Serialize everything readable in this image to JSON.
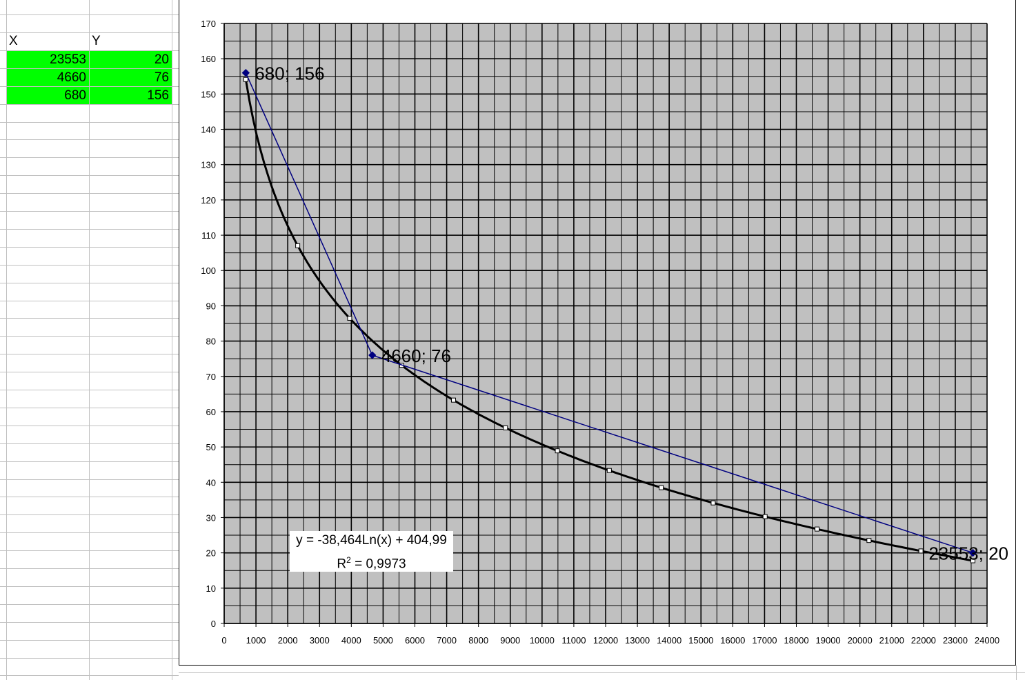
{
  "sheet": {
    "headers": {
      "x": "X",
      "y": "Y"
    },
    "rows": [
      {
        "x": "23553",
        "y": "20"
      },
      {
        "x": "4660",
        "y": "76"
      },
      {
        "x": "680",
        "y": "156"
      }
    ],
    "fill_color": "#00ff00"
  },
  "chart_data": {
    "type": "line",
    "xlim": [
      0,
      24000
    ],
    "ylim": [
      0,
      170
    ],
    "x_ticks": [
      "0",
      "1000",
      "2000",
      "3000",
      "4000",
      "5000",
      "6000",
      "7000",
      "8000",
      "9000",
      "10000",
      "11000",
      "12000",
      "13000",
      "14000",
      "15000",
      "16000",
      "17000",
      "18000",
      "19000",
      "20000",
      "21000",
      "22000",
      "23000",
      "24000"
    ],
    "y_ticks": [
      "0",
      "10",
      "20",
      "30",
      "40",
      "50",
      "60",
      "70",
      "80",
      "90",
      "100",
      "110",
      "120",
      "130",
      "140",
      "150",
      "160",
      "170"
    ],
    "grid": true,
    "plot_background": "#c0c0c0",
    "series": [
      {
        "kind": "data",
        "color": "#000080",
        "marker": "diamond",
        "points": [
          {
            "x": 680,
            "y": 156,
            "label": "680; 156"
          },
          {
            "x": 4660,
            "y": 76,
            "label": "4660; 76"
          },
          {
            "x": 23553,
            "y": 20,
            "label": "23553; 20"
          }
        ]
      },
      {
        "kind": "trendline",
        "color": "#000000",
        "model": "log",
        "a": -38.464,
        "b": 404.99,
        "x_range": [
          680,
          23553
        ]
      }
    ],
    "trendline_label": {
      "equation": "y = -38,464Ln(x) + 404,99",
      "r2_prefix": "R",
      "r2_sup": "2",
      "r2_value": " = 0,9973"
    }
  }
}
